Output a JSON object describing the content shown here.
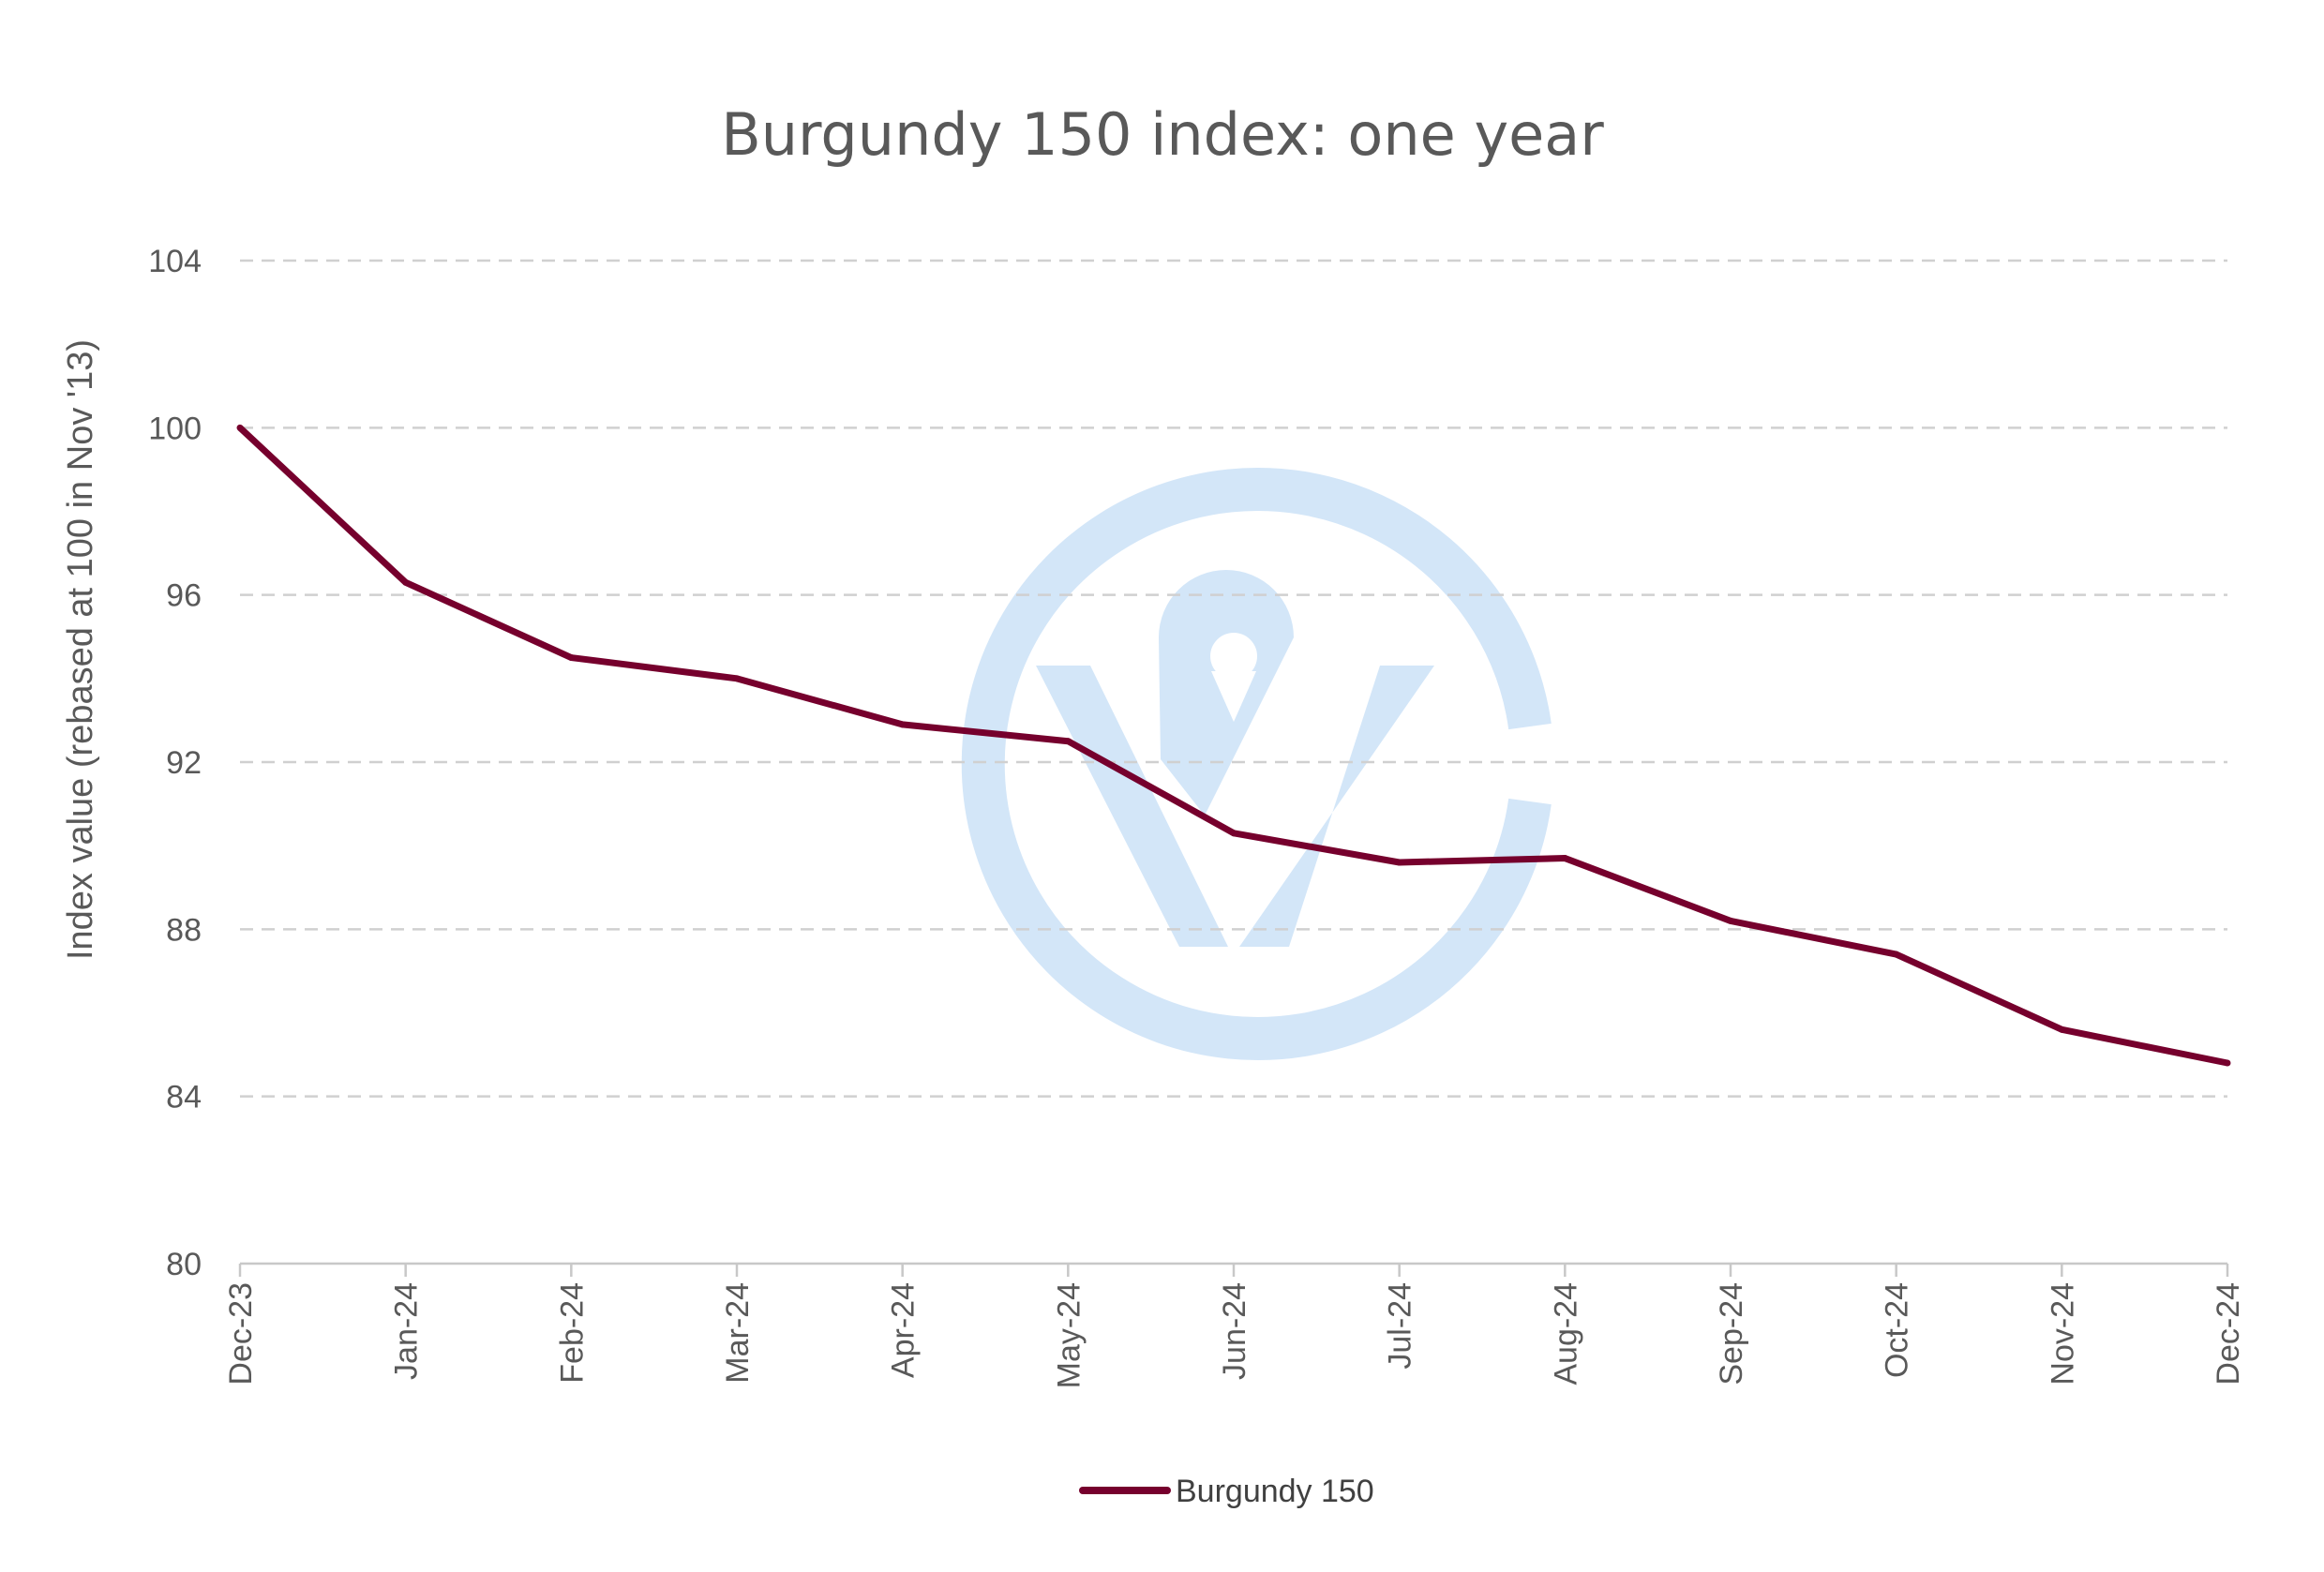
{
  "chart_data": {
    "type": "line",
    "title": "Burgundy 150 index: one year",
    "xlabel": "",
    "ylabel": "Index value  (rebased at 100 in Nov '13)",
    "categories": [
      "Dec-23",
      "Jan-24",
      "Feb-24",
      "Mar-24",
      "Apr-24",
      "May-24",
      "Jun-24",
      "Jul-24",
      "Aug-24",
      "Sep-24",
      "Oct-24",
      "Nov-24",
      "Dec-24"
    ],
    "series": [
      {
        "name": "Burgundy 150",
        "color": "#76002d",
        "values": [
          100.0,
          96.3,
          94.5,
          94.0,
          92.9,
          92.5,
          90.3,
          89.6,
          89.7,
          88.2,
          87.4,
          85.6,
          84.8
        ]
      }
    ],
    "ylim": [
      80,
      104
    ],
    "yticks": [
      80,
      84,
      88,
      92,
      96,
      100,
      104
    ],
    "grid": true,
    "legend": "bottom",
    "watermark_color": "#d3e6f8",
    "watermark_icon": "wine-logo-icon"
  }
}
